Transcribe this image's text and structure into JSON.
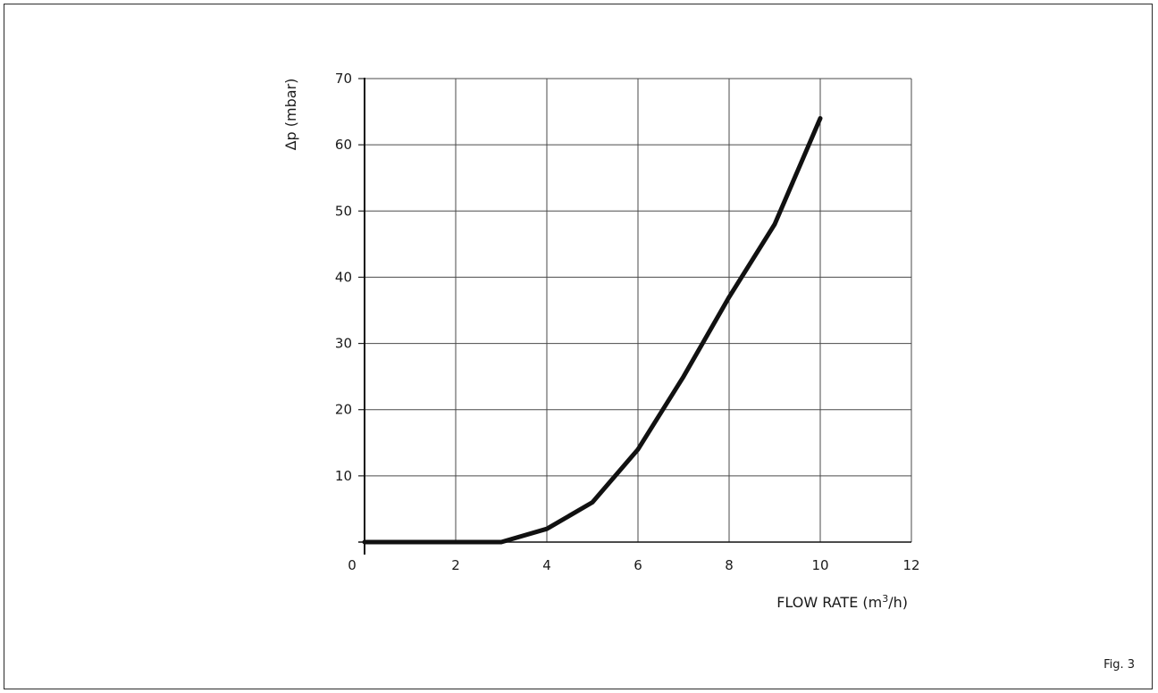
{
  "figure_label": "Fig. 3",
  "chart_data": {
    "type": "line",
    "xlabel_main": "FLOW RATE (m",
    "xlabel_sup": "3",
    "xlabel_end": "/h)",
    "ylabel": "Δp (mbar)",
    "xlim": [
      0,
      12
    ],
    "ylim": [
      0,
      70
    ],
    "x_ticks": [
      "0",
      "2",
      "4",
      "6",
      "8",
      "10",
      "12"
    ],
    "y_ticks": [
      "10",
      "20",
      "30",
      "40",
      "50",
      "60",
      "70"
    ],
    "grid": true,
    "series": [
      {
        "x": [
          0,
          3,
          4,
          5,
          6,
          7,
          8,
          9,
          10
        ],
        "y": [
          0,
          0,
          2,
          6,
          14,
          25,
          37,
          48,
          64
        ]
      }
    ]
  }
}
